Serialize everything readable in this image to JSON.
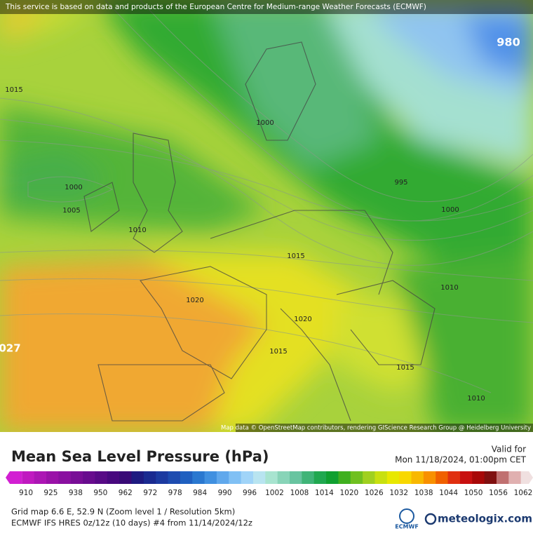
{
  "header": {
    "notice": "This service is based on data and products of the European Centre for Medium-range Weather Forecasts (ECMWF)"
  },
  "map": {
    "attribution": "Map data © OpenStreetMap contributors, rendering GIScience Research Group @ Heidelberg University",
    "contour_labels": [
      "980",
      "1015",
      "1000",
      "1000",
      "1005",
      "1010",
      "995",
      "1000",
      "1015",
      "1010",
      "1020",
      "1020",
      "027",
      "1015",
      "1015",
      "1010"
    ]
  },
  "legend": {
    "title": "Mean Sea Level Pressure (hPa)",
    "valid_label": "Valid for",
    "valid_time": "Mon 11/18/2024, 01:00pm CET",
    "scale_labels": [
      "910",
      "925",
      "938",
      "950",
      "962",
      "972",
      "978",
      "984",
      "990",
      "996",
      "1002",
      "1008",
      "1014",
      "1020",
      "1026",
      "1032",
      "1038",
      "1044",
      "1050",
      "1056",
      "1062"
    ],
    "colors": [
      "#d21fd2",
      "#c01ac0",
      "#ac16b4",
      "#9a12a8",
      "#8a10a0",
      "#780e96",
      "#680c8e",
      "#580a86",
      "#48087e",
      "#380a76",
      "#1e1a80",
      "#1a2a90",
      "#1c3aa0",
      "#1e4cb0",
      "#2060c0",
      "#2a78d0",
      "#4090e0",
      "#60a8ec",
      "#80c0f4",
      "#a0d4f8",
      "#b8e4f0",
      "#a8e4d0",
      "#88d4b8",
      "#68c4a0",
      "#40b478",
      "#20a850",
      "#10a030",
      "#40b020",
      "#70c020",
      "#a0d020",
      "#c8e010",
      "#e8e800",
      "#f8d800",
      "#f8b800",
      "#f89000",
      "#f06000",
      "#e03010",
      "#c81010",
      "#a80808",
      "#801010",
      "#c07070",
      "#e0b0b0",
      "#f0e0e0"
    ]
  },
  "footer": {
    "grid_info": "Grid map 6.6 E, 52.9 N (Zoom level 1 / Resolution 5km)",
    "model_info": "ECMWF IFS HRES 0z/12z (10 days) #4 from  11/14/2024/12z",
    "logo_ecmwf": "ECMWF",
    "logo_meteologix": "meteologix.com"
  }
}
